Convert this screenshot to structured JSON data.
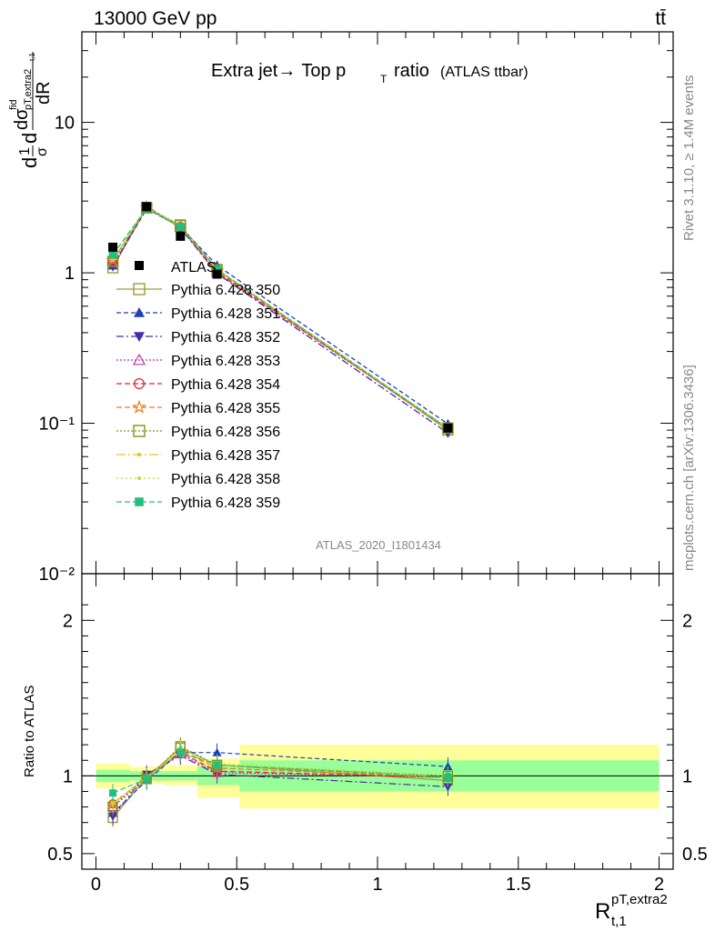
{
  "header": {
    "energy_label": "13000 GeV pp",
    "process_label": "tt̄"
  },
  "side_labels": {
    "rivet": "Rivet 3.1.10, ≥ 1.4M events",
    "mcplots": "mcplots.cern.ch [arXiv:1306.3436]"
  },
  "analysis_id": "ATLAS_2020_I1801434",
  "chart_data": [
    {
      "type": "line",
      "panel": "main",
      "title": "Extra jet→ Top p_T ratio",
      "title_main": "Extra jet",
      "title_arrow": "→",
      "title_top": "Top p",
      "title_sub": "T",
      "title_ratio": "ratio",
      "title_note": "(ATLAS ttbar)",
      "ylabel": "dσ/dR normalised",
      "ylabel_parts": {
        "d1": "d",
        "one": "1",
        "sigma": "σ",
        "d2": "d",
        "sigsym": "σ",
        "sup": "fid",
        "sub1": "pT,extra2",
        "sub2": "t,1",
        "den": "dR"
      },
      "xlabel": "R t,1 pT,extra2",
      "xlabel_parts": {
        "main": "R",
        "sup": "pT,extra2",
        "sub": "t,1"
      },
      "yscale": "log",
      "ylim": [
        0.01,
        40
      ],
      "xlim": [
        -0.05,
        2.05
      ],
      "ytick_labels": [
        "10⁻²",
        "10⁻¹",
        "1",
        "10"
      ],
      "ytick_values": [
        0.01,
        0.1,
        1,
        10
      ],
      "legend_position": "center-left",
      "x": [
        0.06,
        0.18,
        0.3,
        0.43,
        1.25
      ],
      "data": {
        "name": "ATLAS",
        "values": [
          1.48,
          2.75,
          1.75,
          0.98,
          0.093
        ]
      },
      "series": [
        {
          "name": "Pythia 6.428 350",
          "color": "#a09a3c",
          "values": [
            1.08,
            2.72,
            2.06,
            1.05,
            0.09
          ]
        },
        {
          "name": "Pythia 6.428 351",
          "color": "#1f3fb5",
          "values": [
            1.12,
            2.66,
            2.02,
            1.12,
            0.099
          ]
        },
        {
          "name": "Pythia 6.428 352",
          "color": "#4a2ca8",
          "values": [
            1.1,
            2.78,
            1.98,
            0.99,
            0.086
          ]
        },
        {
          "name": "Pythia 6.428 353",
          "color": "#c030a8",
          "values": [
            1.18,
            2.76,
            2.0,
            1.0,
            0.092
          ]
        },
        {
          "name": "Pythia 6.428 354",
          "color": "#e0202a",
          "values": [
            1.21,
            2.72,
            2.02,
            1.01,
            0.092
          ]
        },
        {
          "name": "Pythia 6.428 355",
          "color": "#f07820",
          "values": [
            1.21,
            2.72,
            2.03,
            1.03,
            0.092
          ]
        },
        {
          "name": "Pythia 6.428 356",
          "color": "#7a9a10",
          "values": [
            1.19,
            2.7,
            2.08,
            1.05,
            0.093
          ]
        },
        {
          "name": "Pythia 6.428 357",
          "color": "#e8c020",
          "values": [
            1.21,
            2.72,
            2.03,
            1.05,
            0.092
          ]
        },
        {
          "name": "Pythia 6.428 358",
          "color": "#c8d830",
          "values": [
            1.23,
            2.72,
            2.05,
            1.06,
            0.093
          ]
        },
        {
          "name": "Pythia 6.428 359",
          "color": "#20c080",
          "values": [
            1.32,
            2.68,
            2.02,
            1.05,
            0.092
          ]
        }
      ]
    },
    {
      "type": "line",
      "panel": "ratio",
      "ylabel": "Ratio to ATLAS",
      "ylim": [
        0.4,
        2.3
      ],
      "ytick_labels": [
        "0.5",
        "1",
        "2"
      ],
      "ytick_values": [
        0.5,
        1,
        2
      ],
      "xtick_labels": [
        "0",
        "0.5",
        "1",
        "1.5",
        "2"
      ],
      "xtick_values": [
        0,
        0.5,
        1,
        1.5,
        2
      ],
      "bands": [
        {
          "x0": 0.0,
          "x1": 0.12,
          "inner": [
            0.96,
            1.04
          ],
          "outer": [
            0.92,
            1.08
          ]
        },
        {
          "x0": 0.12,
          "x1": 0.24,
          "inner": [
            0.97,
            1.03
          ],
          "outer": [
            0.95,
            1.06
          ]
        },
        {
          "x0": 0.24,
          "x1": 0.36,
          "inner": [
            0.97,
            1.03
          ],
          "outer": [
            0.94,
            1.07
          ]
        },
        {
          "x0": 0.36,
          "x1": 0.51,
          "inner": [
            0.94,
            1.06
          ],
          "outer": [
            0.86,
            1.11
          ]
        },
        {
          "x0": 0.51,
          "x1": 2.0,
          "inner": [
            0.9,
            1.1
          ],
          "outer": [
            0.79,
            1.2
          ]
        }
      ],
      "x": [
        0.06,
        0.18,
        0.3,
        0.43,
        1.25
      ],
      "series": [
        {
          "name": "Pythia 6.428 350",
          "values": [
            0.73,
            0.99,
            1.18,
            1.07,
            0.97
          ]
        },
        {
          "name": "Pythia 6.428 351",
          "values": [
            0.76,
            0.97,
            1.15,
            1.15,
            1.06
          ]
        },
        {
          "name": "Pythia 6.428 352",
          "values": [
            0.74,
            1.01,
            1.13,
            1.01,
            0.93
          ]
        },
        {
          "name": "Pythia 6.428 353",
          "values": [
            0.8,
            1.0,
            1.14,
            1.02,
            0.99
          ]
        },
        {
          "name": "Pythia 6.428 354",
          "values": [
            0.82,
            0.99,
            1.15,
            1.03,
            0.99
          ]
        },
        {
          "name": "Pythia 6.428 355",
          "values": [
            0.82,
            0.99,
            1.16,
            1.05,
            0.99
          ]
        },
        {
          "name": "Pythia 6.428 356",
          "values": [
            0.8,
            0.98,
            1.19,
            1.07,
            1.0
          ]
        },
        {
          "name": "Pythia 6.428 357",
          "values": [
            0.82,
            0.99,
            1.16,
            1.07,
            0.99
          ]
        },
        {
          "name": "Pythia 6.428 358",
          "values": [
            0.83,
            0.99,
            1.17,
            1.08,
            1.0
          ]
        },
        {
          "name": "Pythia 6.428 359",
          "values": [
            0.89,
            0.98,
            1.15,
            1.07,
            0.99
          ]
        }
      ]
    }
  ]
}
